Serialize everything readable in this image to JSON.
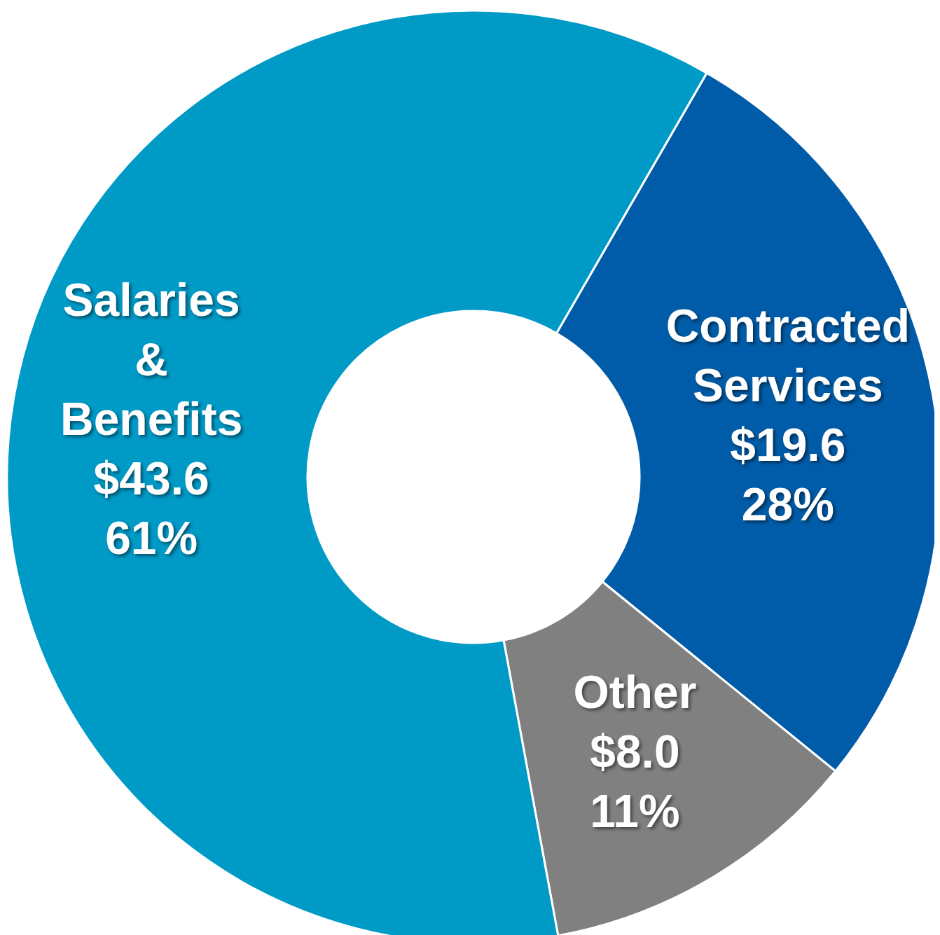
{
  "chart_data": {
    "type": "donut",
    "categories": [
      "Contracted Services",
      "Other",
      "Salaries & Benefits"
    ],
    "values": [
      19.6,
      8.0,
      43.6
    ],
    "colors": [
      "#005ca8",
      "#808080",
      "#009ac7"
    ],
    "value_labels": [
      "$19.6 28%",
      "$8.0 11%",
      "$43.6 61%"
    ],
    "legend": false
  }
}
